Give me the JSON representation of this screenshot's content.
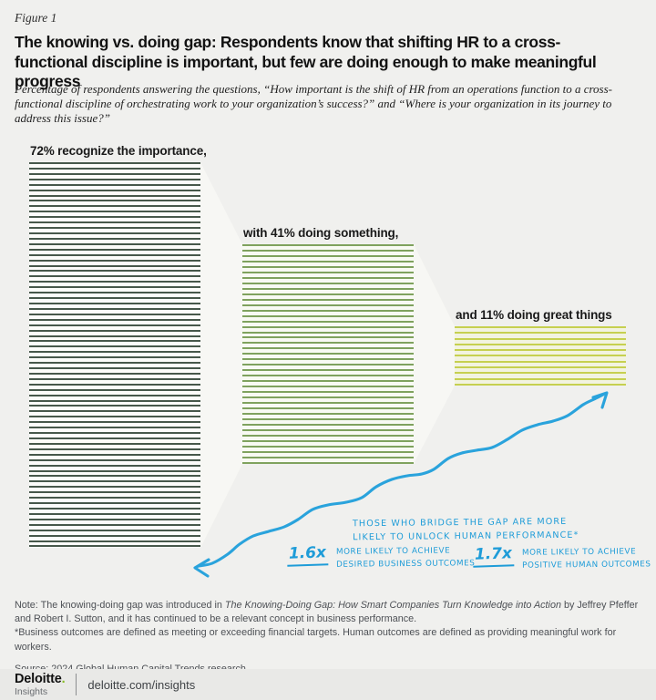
{
  "figure_label": "Figure 1",
  "title": "The knowing vs. doing gap: Respondents know that shifting HR to a cross-functional discipline is important, but few are doing enough to make meaningful progress",
  "subtitle": "Percentage of respondents answering the questions, “How important is the shift of HR from an operations function to a cross-functional discipline of orchestrating work to your organization’s success?” and “Where is your organization in its journey to address this issue?”",
  "chart_data": {
    "type": "bar",
    "title": "The knowing vs. doing gap",
    "categories": [
      "recognize the importance",
      "doing something",
      "doing great things"
    ],
    "values": [
      72,
      41,
      11
    ],
    "unit": "%",
    "labels": [
      "72% recognize the importance,",
      "with 41% doing something,",
      "and 11% doing great things"
    ],
    "bar_colors": [
      "#47584b",
      "#7fa25e",
      "#c6d050"
    ],
    "bar_backgrounds": [
      "#fcfcfa",
      "#f8faf3",
      "#f2f3e0"
    ],
    "layout": "stepped striped blocks, one stripe per percentage point, descending left to right"
  },
  "annotations": {
    "bridge_text_line1": "THOSE WHO BRIDGE THE GAP ARE MORE",
    "bridge_text_line2": "LIKELY TO UNLOCK HUMAN PERFORMANCE*",
    "stats": [
      {
        "factor": "1.6x",
        "line1": "MORE LIKELY TO ACHIEVE",
        "line2": "DESIRED BUSINESS OUTCOMES"
      },
      {
        "factor": "1.7x",
        "line1": "MORE LIKELY TO ACHIEVE",
        "line2": "POSITIVE HUMAN OUTCOMES"
      }
    ],
    "arrow_color": "#2aa3dc",
    "connector_color": "#f7f7f4"
  },
  "notes": {
    "note_prefix": "Note: The knowing-doing gap was introduced in ",
    "note_italic": "The Knowing-Doing Gap: How Smart Companies Turn Knowledge into Action",
    "note_suffix": " by Jeffrey Pfeffer and Robert I. Sutton, and it has continued to be a relevant concept in business performance.",
    "footnote": "*Business outcomes are defined as meeting or exceeding financial targets. Human outcomes are defined as providing meaningful work for workers.",
    "source": "Source: 2024 Global Human Capital Trends research."
  },
  "footer": {
    "brand": "Deloitte",
    "brand_dot": ".",
    "brand_sub": "Insights",
    "url": "deloitte.com/insights"
  }
}
